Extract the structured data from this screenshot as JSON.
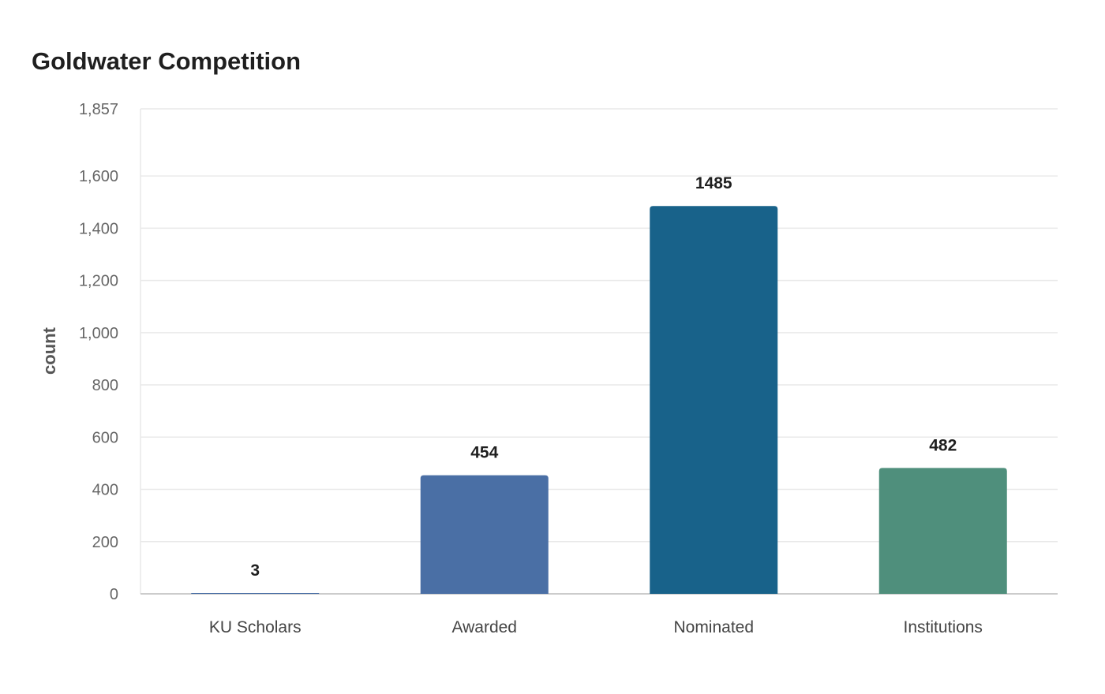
{
  "chart_data": {
    "type": "bar",
    "title": "Goldwater Competition",
    "xlabel": "",
    "ylabel": "count",
    "categories": [
      "KU Scholars",
      "Awarded",
      "Nominated",
      "Institutions"
    ],
    "values": [
      3,
      454,
      1485,
      482
    ],
    "value_labels": [
      "3",
      "454",
      "1485",
      "482"
    ],
    "ylim": [
      0,
      1857
    ],
    "y_ticks": [
      0,
      200,
      400,
      600,
      800,
      1000,
      1200,
      1400,
      1600,
      1857
    ],
    "y_tick_labels": [
      "0",
      "200",
      "400",
      "600",
      "800",
      "1,000",
      "1,200",
      "1,400",
      "1,600",
      "1,857"
    ],
    "grid": true,
    "legend": "none",
    "colors": [
      "#4a6fa5",
      "#4a6fa5",
      "#18628a",
      "#4f8f7c"
    ],
    "grid_color": "#e9e9e9",
    "axis_color": "#cccccc"
  }
}
